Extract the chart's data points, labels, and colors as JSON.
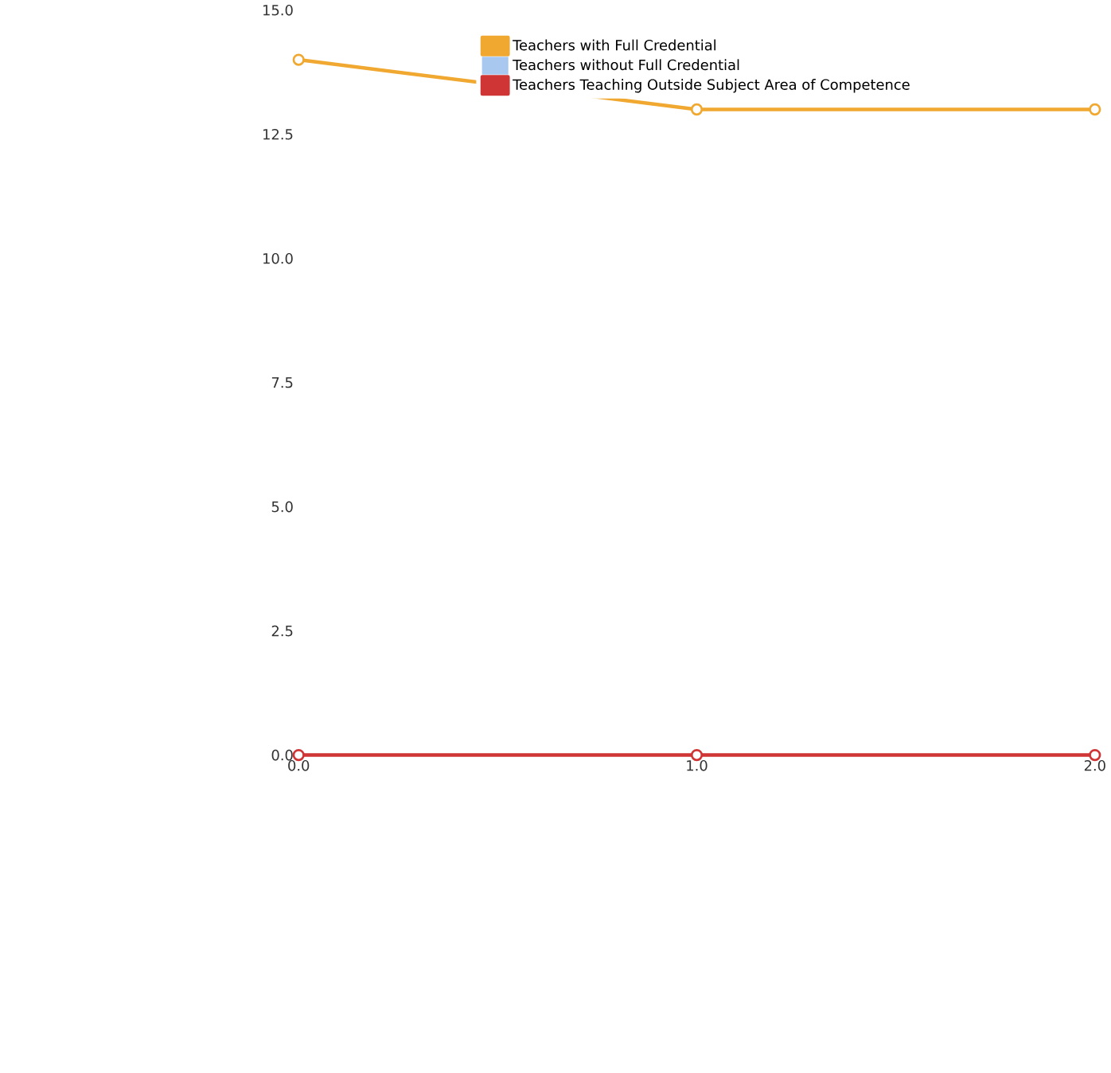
{
  "chart_data": {
    "type": "line",
    "x": [
      0,
      1,
      2
    ],
    "series": [
      {
        "name": "Teachers with Full Credential",
        "color": "#f0a830",
        "values": [
          14,
          13,
          13
        ]
      },
      {
        "name": "Teachers without Full Credential",
        "color": "#a8c8f0",
        "values": [
          null,
          null,
          null
        ]
      },
      {
        "name": "Teachers Teaching Outside Subject Area of Competence",
        "color": "#d03535",
        "values": [
          0,
          0,
          0
        ]
      }
    ],
    "xlim": [
      0,
      2
    ],
    "xticks": [
      {
        "value": 0,
        "label": "0.0"
      },
      {
        "value": 1,
        "label": "1.0"
      },
      {
        "value": 2,
        "label": "2.0"
      }
    ],
    "ylim": [
      0,
      15
    ],
    "yticks": [
      {
        "value": 0,
        "label": "0.0"
      },
      {
        "value": 2.5,
        "label": "2.5"
      },
      {
        "value": 5,
        "label": "5.0"
      },
      {
        "value": 7.5,
        "label": "7.5"
      },
      {
        "value": 10,
        "label": "10.0"
      },
      {
        "value": 12.5,
        "label": "12.5"
      },
      {
        "value": 15,
        "label": "15.0"
      }
    ],
    "marker": "circle",
    "line_style": "solid",
    "legend": "top"
  }
}
